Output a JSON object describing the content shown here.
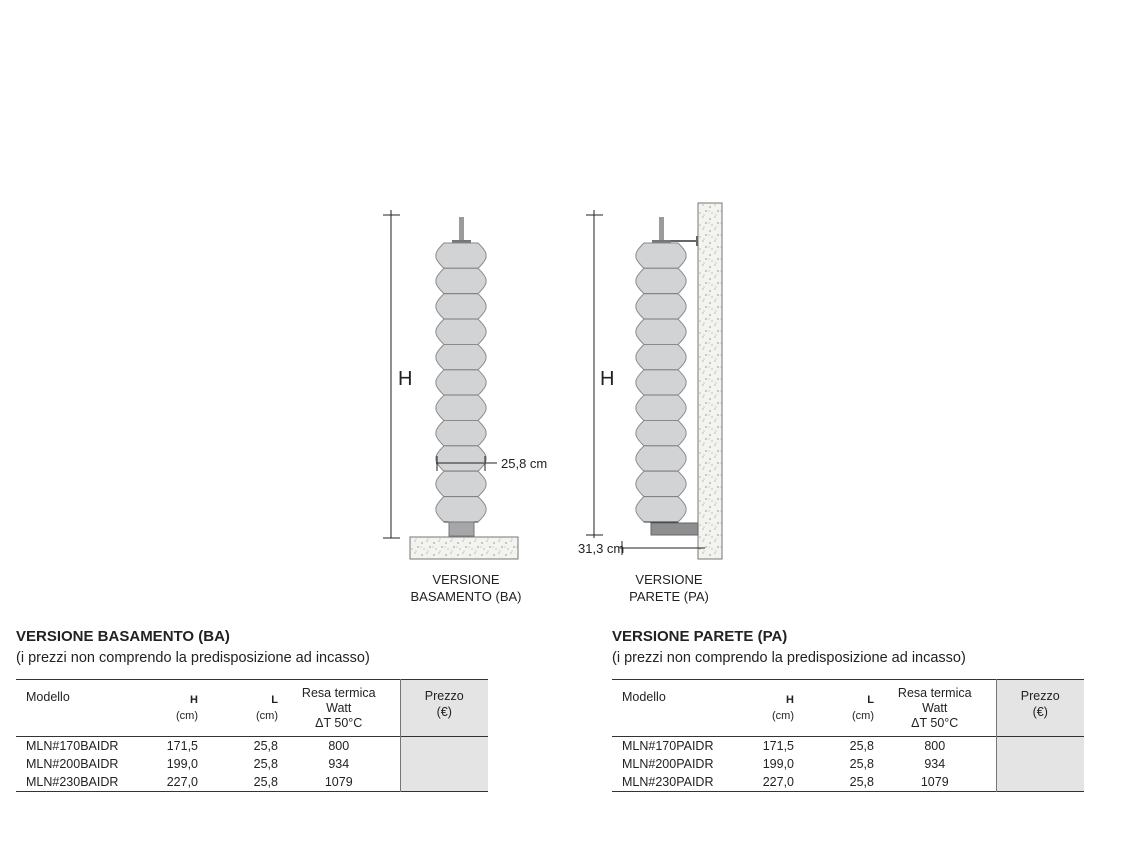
{
  "drawings": {
    "ba": {
      "height_label": "H",
      "width_label": "25,8 cm",
      "caption_line1": "VERSIONE",
      "caption_line2": "BASAMENTO (BA)"
    },
    "pa": {
      "height_label": "H",
      "depth_label": "31,3 cm",
      "caption_line1": "VERSIONE",
      "caption_line2": "PARETE (PA)"
    },
    "colors": {
      "radiator": "#d2d3d5",
      "outline": "#8a8a8a",
      "base": "#9a9b9d",
      "stone": "#f2f2ee"
    }
  },
  "tables": [
    {
      "title": "VERSIONE BASAMENTO (BA)",
      "subtitle": "(i prezzi non comprendo la predisposizione ad incasso)",
      "headers": {
        "model": "Modello",
        "h": "H",
        "h_unit": "(cm)",
        "l": "L",
        "l_unit": "(cm)",
        "power1": "Resa termica",
        "power2": "Watt",
        "power3": "ΔT 50°C",
        "price": "Prezzo",
        "price_unit": "(€)"
      },
      "rows": [
        {
          "model": "MLN#170BAIDR",
          "h": "171,5",
          "l": "25,8",
          "watt": "800"
        },
        {
          "model": "MLN#200BAIDR",
          "h": "199,0",
          "l": "25,8",
          "watt": "934"
        },
        {
          "model": "MLN#230BAIDR",
          "h": "227,0",
          "l": "25,8",
          "watt": "1079"
        }
      ]
    },
    {
      "title": "VERSIONE PARETE (PA)",
      "subtitle": "(i prezzi non comprendo la predisposizione ad incasso)",
      "headers": {
        "model": "Modello",
        "h": "H",
        "h_unit": "(cm)",
        "l": "L",
        "l_unit": "(cm)",
        "power1": "Resa termica",
        "power2": "Watt",
        "power3": "ΔT 50°C",
        "price": "Prezzo",
        "price_unit": "(€)"
      },
      "rows": [
        {
          "model": "MLN#170PAIDR",
          "h": "171,5",
          "l": "25,8",
          "watt": "800"
        },
        {
          "model": "MLN#200PAIDR",
          "h": "199,0",
          "l": "25,8",
          "watt": "934"
        },
        {
          "model": "MLN#230PAIDR",
          "h": "227,0",
          "l": "25,8",
          "watt": "1079"
        }
      ]
    }
  ]
}
